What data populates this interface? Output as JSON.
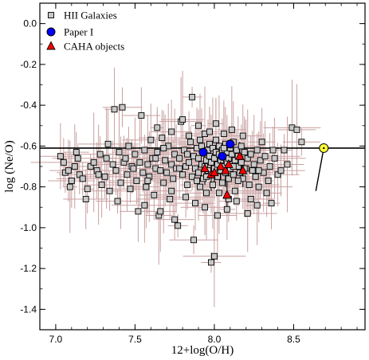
{
  "chart_data": {
    "type": "scatter",
    "xlabel": "12+log(O/H)",
    "ylabel": "log (Ne/O)",
    "xlim": [
      6.9,
      8.95
    ],
    "ylim": [
      -1.5,
      0.1
    ],
    "xticks": [
      7.0,
      7.5,
      8.0,
      8.5
    ],
    "xtick_labels": [
      "7.0",
      "7.5",
      "8.0",
      "8.5"
    ],
    "yticks": [
      0.0,
      -0.2,
      -0.4,
      -0.6,
      -0.8,
      -1.0,
      -1.2,
      -1.4
    ],
    "ytick_labels": [
      "0.0",
      "-0.2",
      "-0.4",
      "-0.6",
      "-0.8",
      "-1.0",
      "-1.2",
      "-1.4"
    ],
    "grid": false,
    "legend_position": "top-left",
    "legend": [
      {
        "label": "HII Galaxies",
        "marker": "square",
        "color": "#c8c8c8"
      },
      {
        "label": "Paper I",
        "marker": "circle",
        "color": "#0000ff"
      },
      {
        "label": "CAHA objects",
        "marker": "triangle",
        "color": "#ff0000"
      }
    ],
    "solar_line_y": -0.61,
    "solar_point": {
      "x": 8.69,
      "y": -0.61,
      "color": "#ffff33"
    },
    "solar_connector": [
      [
        8.69,
        -0.61
      ],
      [
        8.64,
        -0.82
      ]
    ],
    "errorbar_color": "#c9a0a0",
    "series": [
      {
        "name": "HII Galaxies",
        "marker": "square",
        "points": [
          [
            7.03,
            -0.65
          ],
          [
            7.06,
            -0.73
          ],
          [
            7.08,
            -0.72
          ],
          [
            7.09,
            -0.8
          ],
          [
            7.1,
            -0.77
          ],
          [
            7.12,
            -0.7
          ],
          [
            7.14,
            -0.66
          ],
          [
            7.15,
            -0.74
          ],
          [
            7.17,
            -0.76
          ],
          [
            7.19,
            -0.86
          ],
          [
            7.22,
            -0.7
          ],
          [
            7.24,
            -0.68
          ],
          [
            7.26,
            -0.72
          ],
          [
            7.28,
            -0.64
          ],
          [
            7.29,
            -0.79
          ],
          [
            7.31,
            -0.75
          ],
          [
            7.32,
            -0.66
          ],
          [
            7.34,
            -0.82
          ],
          [
            7.36,
            -0.69
          ],
          [
            7.37,
            -0.42
          ],
          [
            7.38,
            -0.72
          ],
          [
            7.4,
            -0.63
          ],
          [
            7.41,
            -0.78
          ],
          [
            7.42,
            -0.41
          ],
          [
            7.43,
            -0.68
          ],
          [
            7.45,
            -0.74
          ],
          [
            7.46,
            -0.6
          ],
          [
            7.47,
            -0.81
          ],
          [
            7.48,
            -0.7
          ],
          [
            7.5,
            -0.64
          ],
          [
            7.51,
            -0.77
          ],
          [
            7.52,
            -0.92
          ],
          [
            7.53,
            -0.68
          ],
          [
            7.54,
            -0.45
          ],
          [
            7.55,
            -0.73
          ],
          [
            7.56,
            -0.62
          ],
          [
            7.57,
            -0.8
          ],
          [
            7.58,
            -0.69
          ],
          [
            7.59,
            -0.75
          ],
          [
            7.6,
            -0.57
          ],
          [
            7.61,
            -0.66
          ],
          [
            7.62,
            -0.84
          ],
          [
            7.63,
            -0.71
          ],
          [
            7.64,
            -0.63
          ],
          [
            7.65,
            -0.94
          ],
          [
            7.66,
            -0.72
          ],
          [
            7.67,
            -0.56
          ],
          [
            7.68,
            -0.78
          ],
          [
            7.69,
            -0.67
          ],
          [
            7.7,
            -0.73
          ],
          [
            7.71,
            -0.6
          ],
          [
            7.72,
            -0.86
          ],
          [
            7.73,
            -0.69
          ],
          [
            7.74,
            -0.76
          ],
          [
            7.75,
            -0.64
          ],
          [
            7.76,
            -0.71
          ],
          [
            7.77,
            -0.99
          ],
          [
            7.78,
            -0.66
          ],
          [
            7.79,
            -0.48
          ],
          [
            7.8,
            -0.74
          ],
          [
            7.81,
            -0.62
          ],
          [
            7.82,
            -0.7
          ],
          [
            7.83,
            -0.79
          ],
          [
            7.84,
            -0.68
          ],
          [
            7.85,
            -0.58
          ],
          [
            7.86,
            -0.36
          ],
          [
            7.86,
            -0.75
          ],
          [
            7.87,
            -0.65
          ],
          [
            7.88,
            -0.88
          ],
          [
            7.88,
            -0.71
          ],
          [
            7.89,
            -0.61
          ],
          [
            7.9,
            -0.73
          ],
          [
            7.9,
            -0.66
          ],
          [
            7.91,
            -0.8
          ],
          [
            7.91,
            -0.57
          ],
          [
            7.92,
            -0.69
          ],
          [
            7.93,
            -0.63
          ],
          [
            7.93,
            -0.76
          ],
          [
            7.94,
            -0.7
          ],
          [
            7.94,
            -0.54
          ],
          [
            7.95,
            -0.67
          ],
          [
            7.95,
            -0.83
          ],
          [
            7.96,
            -0.62
          ],
          [
            7.96,
            -0.72
          ],
          [
            7.97,
            -0.65
          ],
          [
            7.97,
            -0.59
          ],
          [
            7.98,
            -0.74
          ],
          [
            7.98,
            -0.68
          ],
          [
            7.99,
            -0.61
          ],
          [
            7.99,
            -0.79
          ],
          [
            8.0,
            -0.66
          ],
          [
            8.0,
            -0.71
          ],
          [
            8.01,
            -0.63
          ],
          [
            8.01,
            -0.57
          ],
          [
            8.02,
            -0.69
          ],
          [
            8.02,
            -0.75
          ],
          [
            8.03,
            -0.64
          ],
          [
            8.03,
            -0.6
          ],
          [
            8.04,
            -0.72
          ],
          [
            8.04,
            -0.67
          ],
          [
            8.05,
            -0.62
          ],
          [
            8.05,
            -0.78
          ],
          [
            8.06,
            -0.7
          ],
          [
            8.06,
            -0.65
          ],
          [
            8.07,
            -0.59
          ],
          [
            8.07,
            -0.73
          ],
          [
            8.08,
            -0.68
          ],
          [
            8.08,
            -0.63
          ],
          [
            8.09,
            -0.76
          ],
          [
            8.09,
            -0.66
          ],
          [
            8.1,
            -0.71
          ],
          [
            8.1,
            -0.61
          ],
          [
            8.11,
            -0.69
          ],
          [
            8.11,
            -0.64
          ],
          [
            8.12,
            -0.74
          ],
          [
            8.12,
            -0.58
          ],
          [
            8.13,
            -0.67
          ],
          [
            8.13,
            -0.82
          ],
          [
            8.14,
            -0.62
          ],
          [
            8.15,
            -0.7
          ],
          [
            8.15,
            -0.65
          ],
          [
            8.16,
            -0.73
          ],
          [
            8.17,
            -0.6
          ],
          [
            8.17,
            -0.68
          ],
          [
            8.18,
            -0.76
          ],
          [
            8.19,
            -0.63
          ],
          [
            8.2,
            -0.71
          ],
          [
            8.21,
            -0.66
          ],
          [
            8.22,
            -0.79
          ],
          [
            8.23,
            -0.64
          ],
          [
            8.24,
            -0.72
          ],
          [
            8.25,
            -0.69
          ],
          [
            8.26,
            -0.75
          ],
          [
            8.27,
            -0.62
          ],
          [
            8.28,
            -0.8
          ],
          [
            8.29,
            -0.67
          ],
          [
            8.3,
            -0.58
          ],
          [
            8.31,
            -0.73
          ],
          [
            8.32,
            -0.65
          ],
          [
            8.33,
            -0.83
          ],
          [
            8.35,
            -0.7
          ],
          [
            8.36,
            -0.88
          ],
          [
            8.38,
            -0.66
          ],
          [
            8.4,
            -0.74
          ],
          [
            8.42,
            -0.72
          ],
          [
            8.44,
            -0.62
          ],
          [
            8.46,
            -0.69
          ],
          [
            8.49,
            -0.51
          ],
          [
            8.52,
            -0.52
          ],
          [
            8.55,
            -0.58
          ],
          [
            7.05,
            -0.68
          ],
          [
            7.13,
            -0.63
          ],
          [
            7.2,
            -0.81
          ],
          [
            7.27,
            -0.74
          ],
          [
            7.33,
            -0.59
          ],
          [
            7.39,
            -0.87
          ],
          [
            7.44,
            -0.66
          ],
          [
            7.49,
            -0.71
          ],
          [
            7.58,
            -0.77
          ],
          [
            7.63,
            -0.66
          ],
          [
            7.68,
            -0.61
          ],
          [
            7.73,
            -0.82
          ],
          [
            7.78,
            -0.71
          ],
          [
            7.83,
            -0.64
          ],
          [
            7.87,
            -1.06
          ],
          [
            7.89,
            -0.77
          ],
          [
            7.92,
            -0.6
          ],
          [
            7.95,
            -0.75
          ],
          [
            7.98,
            -1.17
          ],
          [
            8.0,
            -1.14
          ],
          [
            8.03,
            -0.83
          ],
          [
            8.06,
            -0.61
          ],
          [
            8.09,
            -0.86
          ],
          [
            8.12,
            -0.7
          ],
          [
            8.15,
            -0.77
          ],
          [
            8.19,
            -0.71
          ],
          [
            8.23,
            -0.86
          ],
          [
            8.28,
            -0.72
          ],
          [
            8.34,
            -0.77
          ],
          [
            8.37,
            -0.62
          ],
          [
            7.64,
            -0.51
          ],
          [
            7.73,
            -0.53
          ],
          [
            7.8,
            -0.47
          ],
          [
            7.84,
            -0.55
          ],
          [
            7.9,
            -0.5
          ],
          [
            7.97,
            -0.53
          ],
          [
            8.01,
            -0.49
          ],
          [
            8.06,
            -0.54
          ],
          [
            8.11,
            -0.52
          ],
          [
            8.18,
            -0.55
          ],
          [
            7.56,
            -0.89
          ],
          [
            7.66,
            -0.92
          ],
          [
            7.75,
            -0.96
          ],
          [
            7.82,
            -0.85
          ],
          [
            7.94,
            -0.9
          ],
          [
            8.02,
            -0.94
          ],
          [
            8.08,
            -0.91
          ],
          [
            8.14,
            -0.87
          ],
          [
            8.21,
            -0.93
          ],
          [
            8.27,
            -0.89
          ]
        ]
      },
      {
        "name": "Paper I",
        "marker": "circle",
        "points": [
          [
            7.93,
            -0.63
          ],
          [
            8.05,
            -0.65
          ],
          [
            8.1,
            -0.59
          ]
        ]
      },
      {
        "name": "CAHA objects",
        "marker": "triangle",
        "points": [
          [
            7.94,
            -0.71
          ],
          [
            7.98,
            -0.74
          ],
          [
            8.0,
            -0.73
          ],
          [
            8.04,
            -0.7
          ],
          [
            8.07,
            -0.72
          ],
          [
            8.08,
            -0.84
          ],
          [
            8.09,
            -0.69
          ],
          [
            8.16,
            -0.65
          ],
          [
            8.18,
            -0.72
          ]
        ]
      }
    ]
  }
}
